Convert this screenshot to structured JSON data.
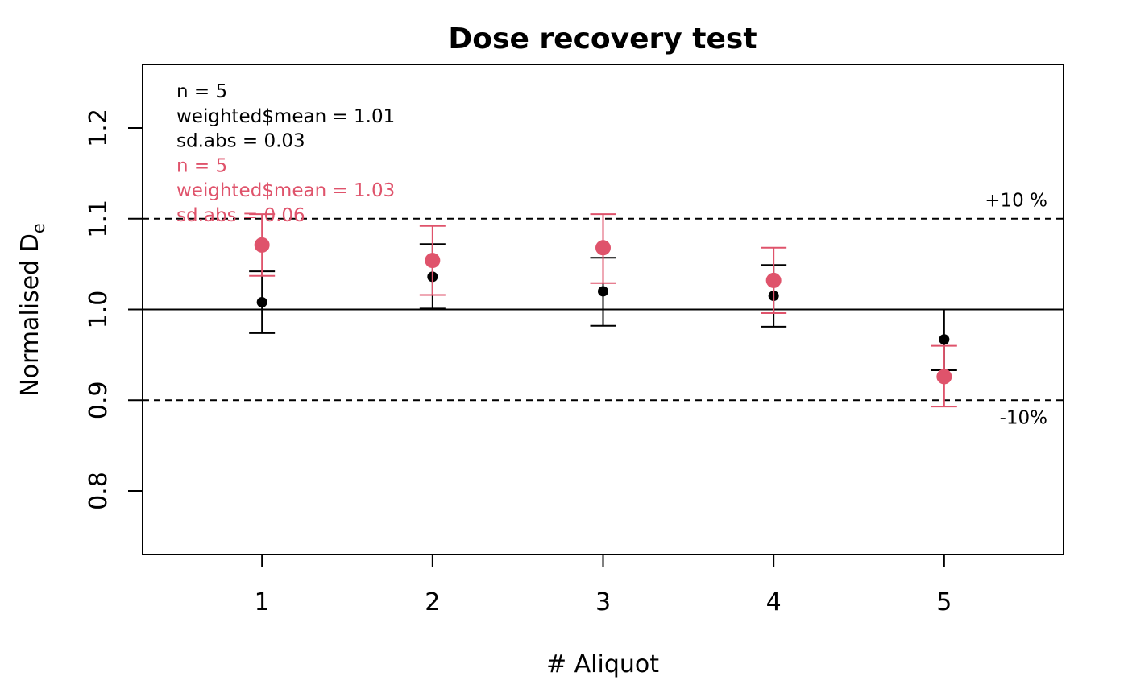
{
  "chart_data": {
    "type": "scatter",
    "title": "Dose recovery test",
    "xlabel": "# Aliquot",
    "ylabel": "Normalised D",
    "ylabel_subscript": "e",
    "xlim": [
      0.3,
      5.7
    ],
    "ylim": [
      0.73,
      1.27
    ],
    "x_ticks": [
      1,
      2,
      3,
      4,
      5
    ],
    "y_ticks": [
      0.8,
      0.9,
      1.0,
      1.1,
      1.2
    ],
    "y_tick_labels": [
      "0.8",
      "0.9",
      "1.0",
      "1.1",
      "1.2"
    ],
    "grid": false,
    "reference_lines": [
      {
        "y": 1.0,
        "style": "solid"
      },
      {
        "y": 1.1,
        "style": "dashed",
        "label": "+10 %"
      },
      {
        "y": 0.9,
        "style": "dashed",
        "label": "-10%"
      }
    ],
    "series": [
      {
        "color": "#000000",
        "marker": "small-dot",
        "x": [
          1,
          2,
          3,
          4,
          5
        ],
        "y": [
          1.008,
          1.036,
          1.02,
          1.015,
          0.967
        ],
        "err_low": [
          0.974,
          1.001,
          0.982,
          0.981,
          0.933
        ],
        "err_high": [
          1.042,
          1.072,
          1.057,
          1.049,
          1.0
        ]
      },
      {
        "color": "#DF536B",
        "marker": "large-dot",
        "x": [
          1,
          2,
          3,
          4,
          5
        ],
        "y": [
          1.071,
          1.054,
          1.068,
          1.032,
          0.926
        ],
        "err_low": [
          1.037,
          1.016,
          1.029,
          0.996,
          0.893
        ],
        "err_high": [
          1.105,
          1.092,
          1.105,
          1.068,
          0.96
        ]
      }
    ],
    "annotations": [
      {
        "text": "n = 5",
        "color": "#000000"
      },
      {
        "text": "weighted$mean = 1.01",
        "color": "#000000"
      },
      {
        "text": "sd.abs = 0.03",
        "color": "#000000"
      },
      {
        "text": "n = 5",
        "color": "#DF536B"
      },
      {
        "text": "weighted$mean = 1.03",
        "color": "#DF536B"
      },
      {
        "text": "sd.abs = 0.06",
        "color": "#DF536B"
      }
    ]
  }
}
